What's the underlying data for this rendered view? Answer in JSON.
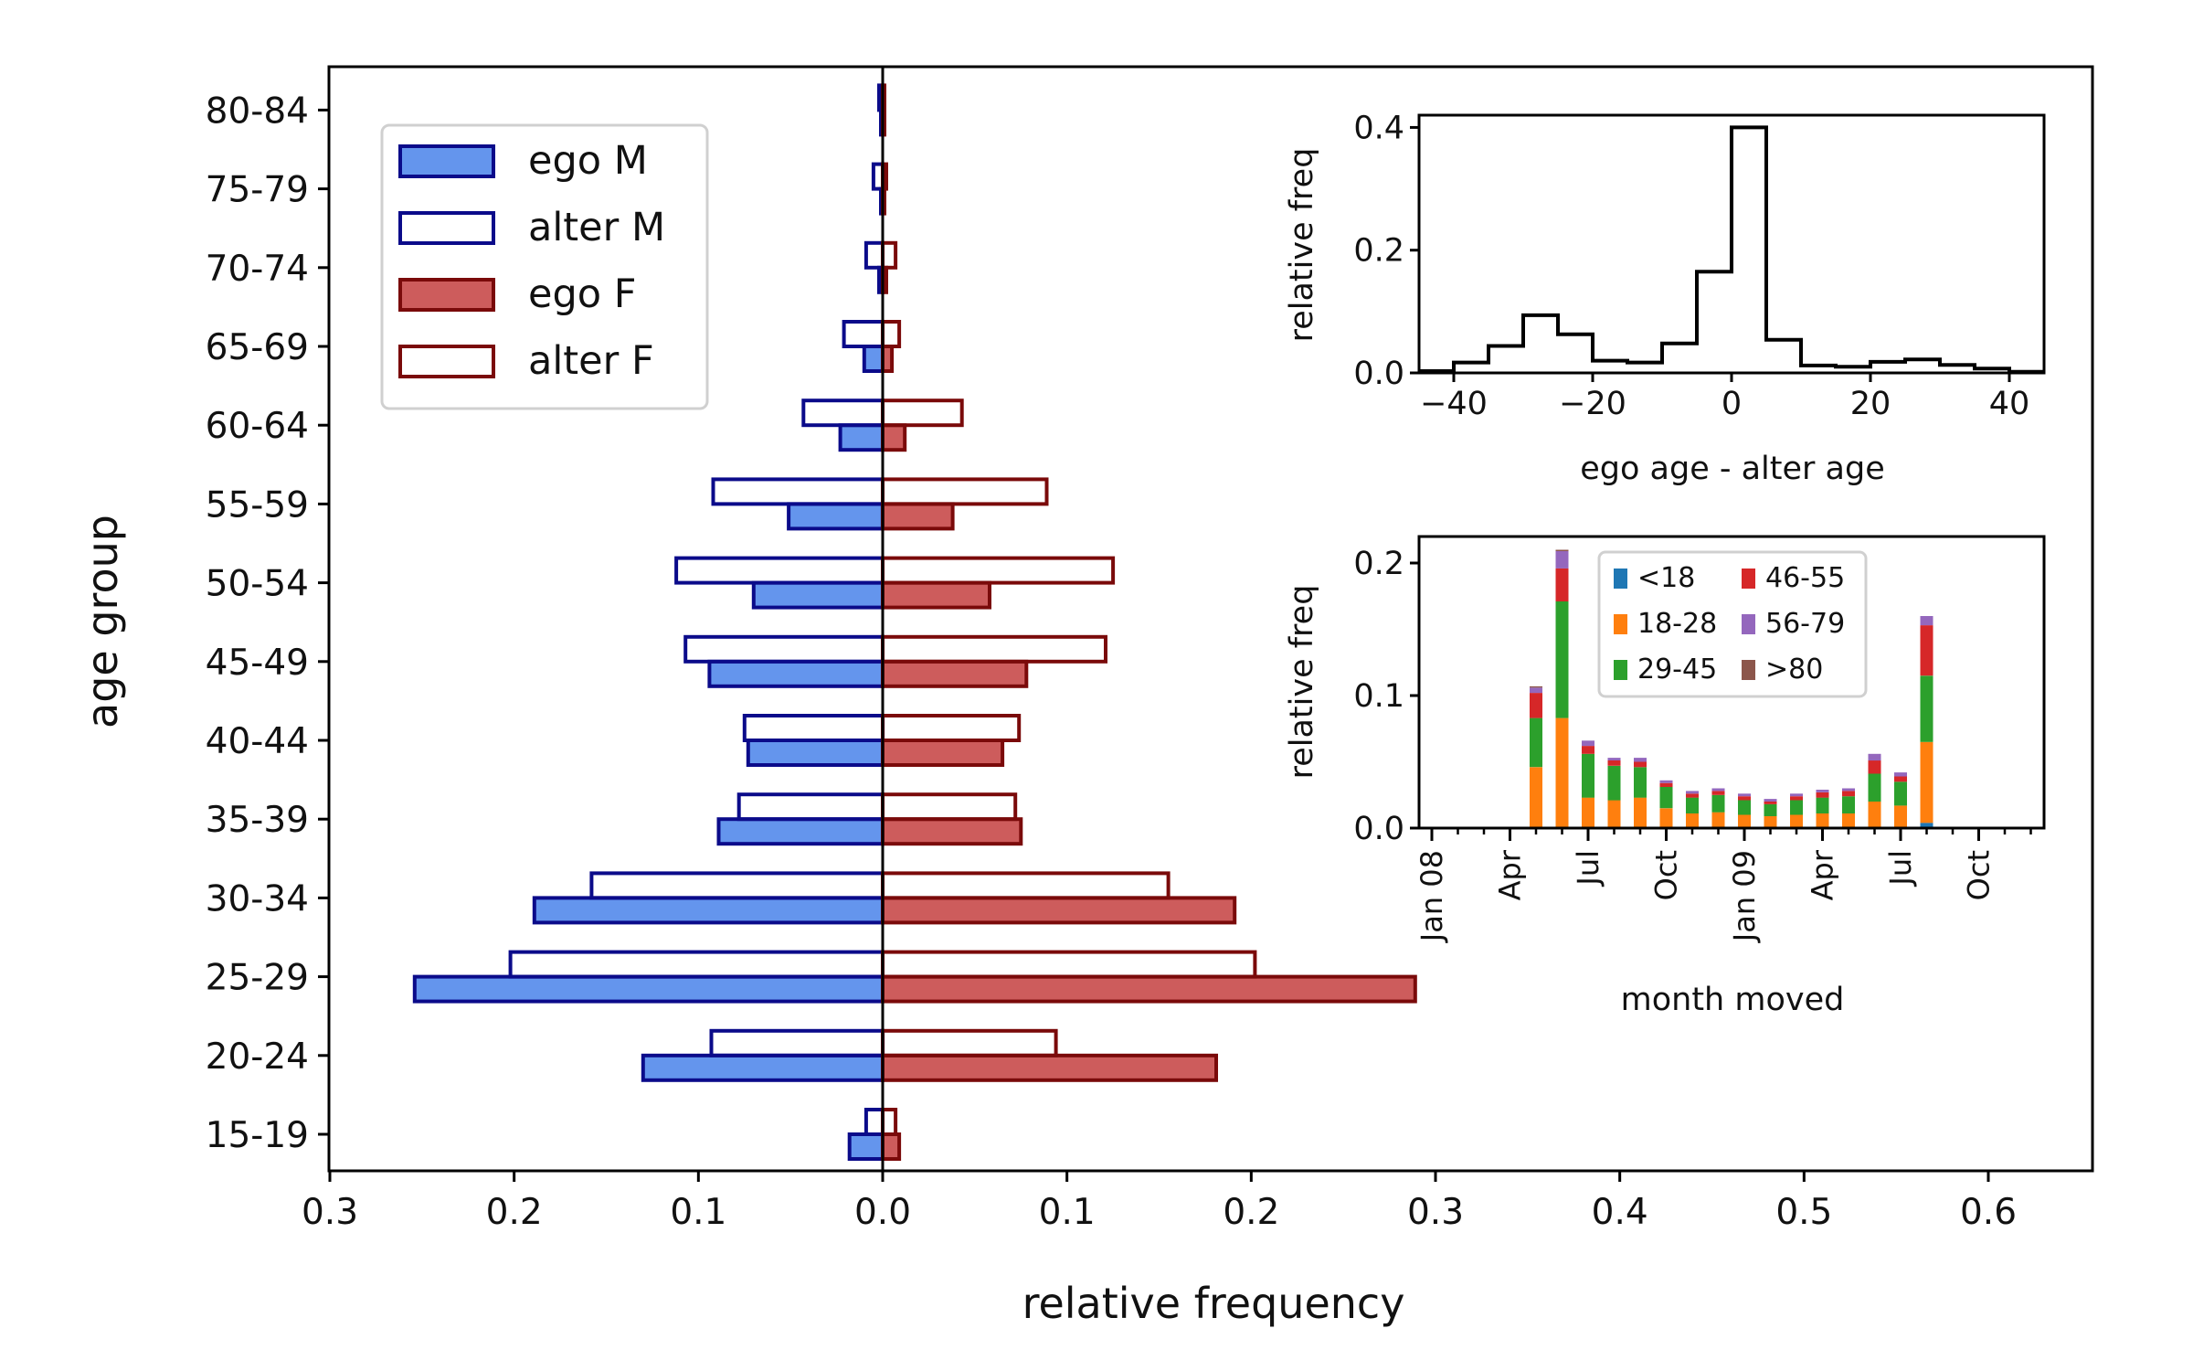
{
  "chart_data": [
    {
      "type": "bar",
      "orientation": "horizontal",
      "categories": [
        "15-19",
        "20-24",
        "25-29",
        "30-34",
        "35-39",
        "40-44",
        "45-49",
        "50-54",
        "55-59",
        "60-64",
        "65-69",
        "70-74",
        "75-79",
        "80-84"
      ],
      "series": [
        {
          "name": "ego M",
          "side": "left",
          "fill": "#6495ed",
          "edge": "#0b0b8a",
          "values": [
            0.018,
            0.13,
            0.254,
            0.189,
            0.089,
            0.073,
            0.094,
            0.07,
            0.051,
            0.023,
            0.01,
            0.002,
            0.001,
            0.001
          ]
        },
        {
          "name": "alter M",
          "side": "left",
          "fill": "none",
          "edge": "#0b0b8a",
          "values": [
            0.009,
            0.093,
            0.202,
            0.158,
            0.078,
            0.075,
            0.107,
            0.112,
            0.092,
            0.043,
            0.021,
            0.009,
            0.005,
            0.002
          ]
        },
        {
          "name": "ego F",
          "side": "right",
          "fill": "#cd5c5c",
          "edge": "#7a0a0a",
          "values": [
            0.009,
            0.181,
            0.289,
            0.191,
            0.075,
            0.065,
            0.078,
            0.058,
            0.038,
            0.012,
            0.005,
            0.002,
            0.001,
            0.001
          ]
        },
        {
          "name": "alter F",
          "side": "right",
          "fill": "none",
          "edge": "#7a0a0a",
          "values": [
            0.007,
            0.094,
            0.202,
            0.155,
            0.072,
            0.074,
            0.121,
            0.125,
            0.089,
            0.043,
            0.009,
            0.007,
            0.002,
            0.001
          ]
        }
      ],
      "xlabel": "relative frequency",
      "ylabel": "age group",
      "xticks": [
        -0.3,
        -0.2,
        -0.1,
        0.0,
        0.1,
        0.2,
        0.3,
        0.4,
        0.5,
        0.6
      ],
      "xticklabels": [
        "0.3",
        "0.2",
        "0.1",
        "0.0",
        "0.1",
        "0.2",
        "0.3",
        "0.4",
        "0.5",
        "0.6"
      ],
      "xlim": [
        -0.3,
        0.66
      ],
      "legend_position": "upper-left"
    },
    {
      "type": "line",
      "style": "step",
      "x": [
        -45,
        -40,
        -35,
        -30,
        -25,
        -20,
        -15,
        -10,
        -5,
        0,
        5,
        10,
        15,
        20,
        25,
        30,
        35,
        40,
        45
      ],
      "y": [
        0.003,
        0.017,
        0.044,
        0.094,
        0.063,
        0.02,
        0.017,
        0.048,
        0.165,
        0.4,
        0.054,
        0.012,
        0.01,
        0.018,
        0.022,
        0.013,
        0.007,
        0.002,
        0.002
      ],
      "xlabel": "ego age - alter age",
      "ylabel": "relative freq",
      "xlim": [
        -45,
        45
      ],
      "ylim": [
        0,
        0.42
      ],
      "xticks": [
        -40,
        -20,
        0,
        20,
        40
      ],
      "xticklabels": [
        "−40",
        "−20",
        "0",
        "20",
        "40"
      ],
      "yticks": [
        0.0,
        0.2,
        0.4
      ],
      "yticklabels": [
        "0.0",
        "0.2",
        "0.4"
      ],
      "color": "#000000"
    },
    {
      "type": "bar",
      "stacked": true,
      "x": [
        "Jan 08",
        "Feb 08",
        "Mar 08",
        "Apr 08",
        "May 08",
        "Jun 08",
        "Jul 08",
        "Aug 08",
        "Sep 08",
        "Oct 08",
        "Nov 08",
        "Dec 08",
        "Jan 09",
        "Feb 09",
        "Mar 09",
        "Apr 09",
        "May 09",
        "Jun 09",
        "Jul 09",
        "Aug 09",
        "Sep 09",
        "Oct 09",
        "Nov 09",
        "Dec 09"
      ],
      "series": [
        {
          "name": "<18",
          "color": "#1f77b4",
          "values": [
            0,
            0,
            0,
            0,
            0,
            0,
            0,
            0,
            0,
            0,
            0,
            0,
            0,
            0,
            0,
            0,
            0,
            0,
            0,
            0.004,
            0,
            0,
            0,
            0
          ]
        },
        {
          "name": "18-28",
          "color": "#ff7f0e",
          "values": [
            0,
            0,
            0,
            0,
            0.046,
            0.083,
            0.023,
            0.021,
            0.023,
            0.015,
            0.011,
            0.012,
            0.01,
            0.009,
            0.01,
            0.011,
            0.011,
            0.02,
            0.017,
            0.061,
            0,
            0,
            0,
            0
          ]
        },
        {
          "name": "29-45",
          "color": "#2ca02c",
          "values": [
            0,
            0,
            0,
            0,
            0.037,
            0.088,
            0.033,
            0.026,
            0.023,
            0.016,
            0.012,
            0.013,
            0.011,
            0.009,
            0.011,
            0.012,
            0.013,
            0.021,
            0.018,
            0.05,
            0,
            0,
            0,
            0
          ]
        },
        {
          "name": "46-55",
          "color": "#d62728",
          "values": [
            0,
            0,
            0,
            0,
            0.019,
            0.025,
            0.006,
            0.004,
            0.004,
            0.003,
            0.003,
            0.003,
            0.003,
            0.002,
            0.003,
            0.004,
            0.004,
            0.01,
            0.004,
            0.038,
            0,
            0,
            0,
            0
          ]
        },
        {
          "name": "56-79",
          "color": "#9467bd",
          "values": [
            0,
            0,
            0,
            0,
            0.004,
            0.013,
            0.004,
            0.002,
            0.003,
            0.002,
            0.002,
            0.002,
            0.002,
            0.002,
            0.002,
            0.002,
            0.002,
            0.005,
            0.003,
            0.007,
            0,
            0,
            0,
            0
          ]
        },
        {
          "name": ">80",
          "color": "#8c564b",
          "values": [
            0,
            0,
            0,
            0,
            0.001,
            0.001,
            0,
            0,
            0,
            0,
            0,
            0,
            0,
            0,
            0,
            0,
            0,
            0,
            0,
            0,
            0,
            0,
            0,
            0
          ]
        }
      ],
      "xlabel": "month moved",
      "ylabel": "relative freq",
      "ylim": [
        0,
        0.22
      ],
      "yticks": [
        0.0,
        0.1,
        0.2
      ],
      "yticklabels": [
        "0.0",
        "0.1",
        "0.2"
      ],
      "xticks": [
        "Jan 08",
        "Apr",
        "Jul",
        "Oct",
        "Jan 09",
        "Apr",
        "Jul",
        "Oct"
      ],
      "legend_position": "top-center",
      "legend_columns": 2
    }
  ]
}
